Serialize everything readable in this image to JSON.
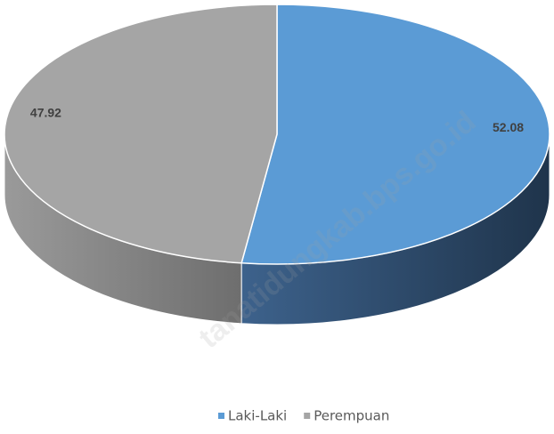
{
  "chart_data": {
    "type": "pie",
    "categories": [
      "Laki-Laki",
      "Perempuan"
    ],
    "values": [
      52.08,
      47.92
    ],
    "colors": [
      "#5b9bd5",
      "#a5a5a5"
    ],
    "legend": "bottom",
    "watermark": "tanatidungkab.bps.go.id"
  }
}
